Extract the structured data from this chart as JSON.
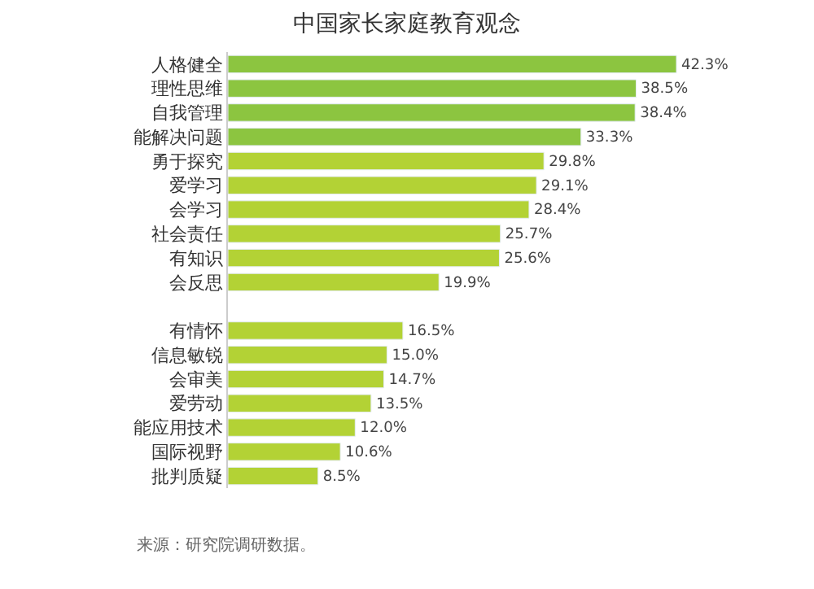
{
  "chart_data": {
    "type": "bar",
    "orientation": "horizontal",
    "title": "中国家长家庭教育观念",
    "categories": [
      "人格健全",
      "理性思维",
      "自我管理",
      "能解决问题",
      "勇于探究",
      "爱学习",
      "会学习",
      "社会责任",
      "有知识",
      "会反思",
      null,
      "有情怀",
      "信息敏锐",
      "会审美",
      "爱劳动",
      "能应用技术",
      "国际视野",
      "批判质疑"
    ],
    "values": [
      42.3,
      38.5,
      38.4,
      33.3,
      29.8,
      29.1,
      28.4,
      25.7,
      25.6,
      19.9,
      null,
      16.5,
      15.0,
      14.7,
      13.5,
      12.0,
      10.6,
      8.5
    ],
    "value_labels": [
      "42.3%",
      "38.5%",
      "38.4%",
      "33.3%",
      "29.8%",
      "29.1%",
      "28.4%",
      "25.7%",
      "25.6%",
      "19.9%",
      null,
      "16.5%",
      "15.0%",
      "14.7%",
      "13.5%",
      "12.0%",
      "10.6%",
      "8.5%"
    ],
    "colors": [
      "#8cc540",
      "#8cc540",
      "#8cc540",
      "#8cc540",
      "#b3d235",
      "#b3d235",
      "#b3d235",
      "#b3d235",
      "#b3d235",
      "#b3d235",
      "#b3d235",
      "#b3d235",
      "#b3d235",
      "#b3d235",
      "#b3d235",
      "#b3d235",
      "#b3d235",
      "#b3d235"
    ],
    "annotations": [
      "来源：研究院调研数据。"
    ]
  }
}
